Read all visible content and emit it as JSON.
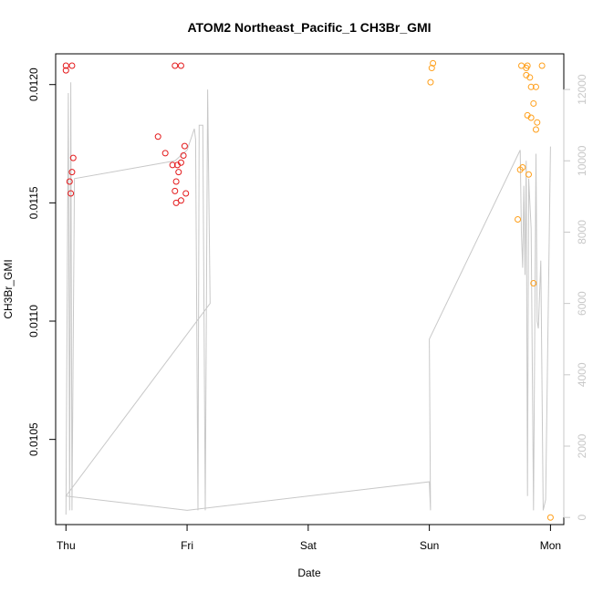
{
  "chart_data": {
    "type": "scatter",
    "title": "ATOM2 Northeast_Pacific_1 CH3Br_GMI",
    "xlabel": "Date",
    "ylabel": "CH3Br_GMI",
    "x_ticks": [
      "Thu",
      "Fri",
      "Sat",
      "Sun",
      "Mon"
    ],
    "x_tick_positions": [
      0,
      1,
      2,
      3,
      4
    ],
    "xlim": [
      -0.085,
      4.11
    ],
    "ylim": [
      0.01014,
      0.01213
    ],
    "y_ticks": [
      0.0105,
      0.011,
      0.0115,
      0.012
    ],
    "y_tick_labels": [
      "0.0105",
      "0.0110",
      "0.0115",
      "0.0120"
    ],
    "y2_ticks": [
      0,
      2000,
      4000,
      6000,
      8000,
      10000,
      12000
    ],
    "y2_tick_labels": [
      "0",
      "2000",
      "4000",
      "6000",
      "8000",
      "10000",
      "12000"
    ],
    "y2lim": [
      -200,
      13000
    ],
    "grid": false,
    "series": [
      {
        "color": "#e41a1c",
        "marker": "circle-open",
        "points": [
          {
            "x": 0.0,
            "y": 0.01208
          },
          {
            "x": 0.0,
            "y": 0.01206
          },
          {
            "x": 0.05,
            "y": 0.01208
          },
          {
            "x": 0.06,
            "y": 0.01169
          },
          {
            "x": 0.05,
            "y": 0.01163
          },
          {
            "x": 0.03,
            "y": 0.01159
          },
          {
            "x": 0.04,
            "y": 0.01154
          },
          {
            "x": 0.76,
            "y": 0.01178
          },
          {
            "x": 0.82,
            "y": 0.01171
          },
          {
            "x": 0.9,
            "y": 0.01208
          },
          {
            "x": 0.95,
            "y": 0.01208
          },
          {
            "x": 0.88,
            "y": 0.01166
          },
          {
            "x": 0.92,
            "y": 0.01166
          },
          {
            "x": 0.95,
            "y": 0.01167
          },
          {
            "x": 0.97,
            "y": 0.0117
          },
          {
            "x": 0.98,
            "y": 0.01174
          },
          {
            "x": 0.93,
            "y": 0.01163
          },
          {
            "x": 0.91,
            "y": 0.01159
          },
          {
            "x": 0.9,
            "y": 0.01155
          },
          {
            "x": 0.99,
            "y": 0.01154
          },
          {
            "x": 0.95,
            "y": 0.01151
          },
          {
            "x": 0.91,
            "y": 0.0115
          }
        ]
      },
      {
        "color": "#ff9f1a",
        "marker": "circle-open",
        "points": [
          {
            "x": 3.03,
            "y": 0.01209
          },
          {
            "x": 3.02,
            "y": 0.01207
          },
          {
            "x": 3.01,
            "y": 0.01201
          },
          {
            "x": 3.76,
            "y": 0.01208
          },
          {
            "x": 3.81,
            "y": 0.01208
          },
          {
            "x": 3.93,
            "y": 0.01208
          },
          {
            "x": 3.8,
            "y": 0.01207
          },
          {
            "x": 3.8,
            "y": 0.01204
          },
          {
            "x": 3.83,
            "y": 0.01203
          },
          {
            "x": 3.84,
            "y": 0.01199
          },
          {
            "x": 3.88,
            "y": 0.01199
          },
          {
            "x": 3.86,
            "y": 0.01192
          },
          {
            "x": 3.81,
            "y": 0.01187
          },
          {
            "x": 3.84,
            "y": 0.01186
          },
          {
            "x": 3.89,
            "y": 0.01184
          },
          {
            "x": 3.88,
            "y": 0.01181
          },
          {
            "x": 3.77,
            "y": 0.01165
          },
          {
            "x": 3.75,
            "y": 0.01164
          },
          {
            "x": 3.82,
            "y": 0.01162
          },
          {
            "x": 3.73,
            "y": 0.01143
          },
          {
            "x": 3.86,
            "y": 0.01116
          },
          {
            "x": 4.0,
            "y": 0.01017
          }
        ]
      }
    ],
    "altitude_series": {
      "color": "#c8c8c8",
      "axis": "right",
      "points": [
        [
          0.0,
          80
        ],
        [
          0.02,
          11900
        ],
        [
          0.03,
          200
        ],
        [
          0.04,
          12200
        ],
        [
          0.05,
          200
        ],
        [
          0.07,
          9500
        ],
        [
          0.9,
          10000
        ],
        [
          1.0,
          10300
        ],
        [
          1.06,
          10900
        ],
        [
          1.07,
          10600
        ],
        [
          1.09,
          200
        ],
        [
          1.1,
          11000
        ],
        [
          1.13,
          11000
        ],
        [
          1.15,
          200
        ],
        [
          1.17,
          12000
        ],
        [
          1.19,
          6000
        ],
        [
          0.0,
          600
        ],
        [
          1.0,
          200
        ],
        [
          3.0,
          1000
        ],
        [
          3.01,
          200
        ],
        [
          3.0,
          5000
        ],
        [
          3.75,
          10300
        ],
        [
          3.76,
          8000
        ],
        [
          3.77,
          7000
        ],
        [
          3.78,
          9300
        ],
        [
          3.79,
          6800
        ],
        [
          3.8,
          10000
        ],
        [
          3.81,
          600
        ],
        [
          3.82,
          9500
        ],
        [
          3.84,
          8100
        ],
        [
          3.86,
          200
        ],
        [
          3.88,
          10200
        ],
        [
          3.89,
          5500
        ],
        [
          3.9,
          5300
        ],
        [
          3.92,
          7200
        ],
        [
          3.94,
          200
        ],
        [
          3.96,
          500
        ],
        [
          4.0,
          10400
        ]
      ]
    }
  }
}
